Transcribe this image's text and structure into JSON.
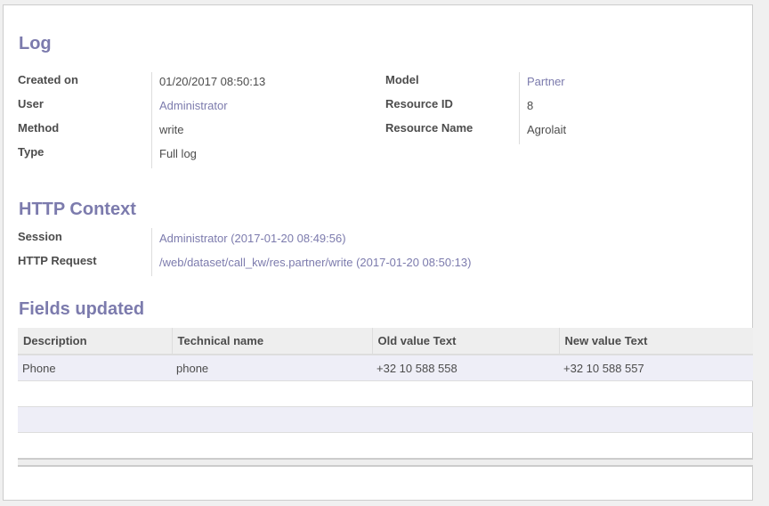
{
  "log": {
    "title": "Log",
    "left": [
      {
        "label": "Created on",
        "value": "01/20/2017 08:50:13",
        "link": false
      },
      {
        "label": "User",
        "value": "Administrator",
        "link": true
      },
      {
        "label": "Method",
        "value": "write",
        "link": false
      },
      {
        "label": "Type",
        "value": "Full log",
        "link": false
      }
    ],
    "right": [
      {
        "label": "Model",
        "value": "Partner",
        "link": true
      },
      {
        "label": "Resource ID",
        "value": "8",
        "link": false
      },
      {
        "label": "Resource Name",
        "value": "Agrolait",
        "link": false
      }
    ]
  },
  "http": {
    "title": "HTTP Context",
    "rows": [
      {
        "label": "Session",
        "value": "Administrator (2017-01-20 08:49:56)"
      },
      {
        "label": "HTTP Request",
        "value": "/web/dataset/call_kw/res.partner/write (2017-01-20 08:50:13)"
      }
    ]
  },
  "fields": {
    "title": "Fields updated",
    "columns": [
      "Description",
      "Technical name",
      "Old value Text",
      "New value Text"
    ],
    "rows": [
      [
        "Phone",
        "phone",
        "+32 10 588 558",
        "+32 10 588 557"
      ]
    ]
  },
  "colors": {
    "accent": "#7c7bad"
  }
}
